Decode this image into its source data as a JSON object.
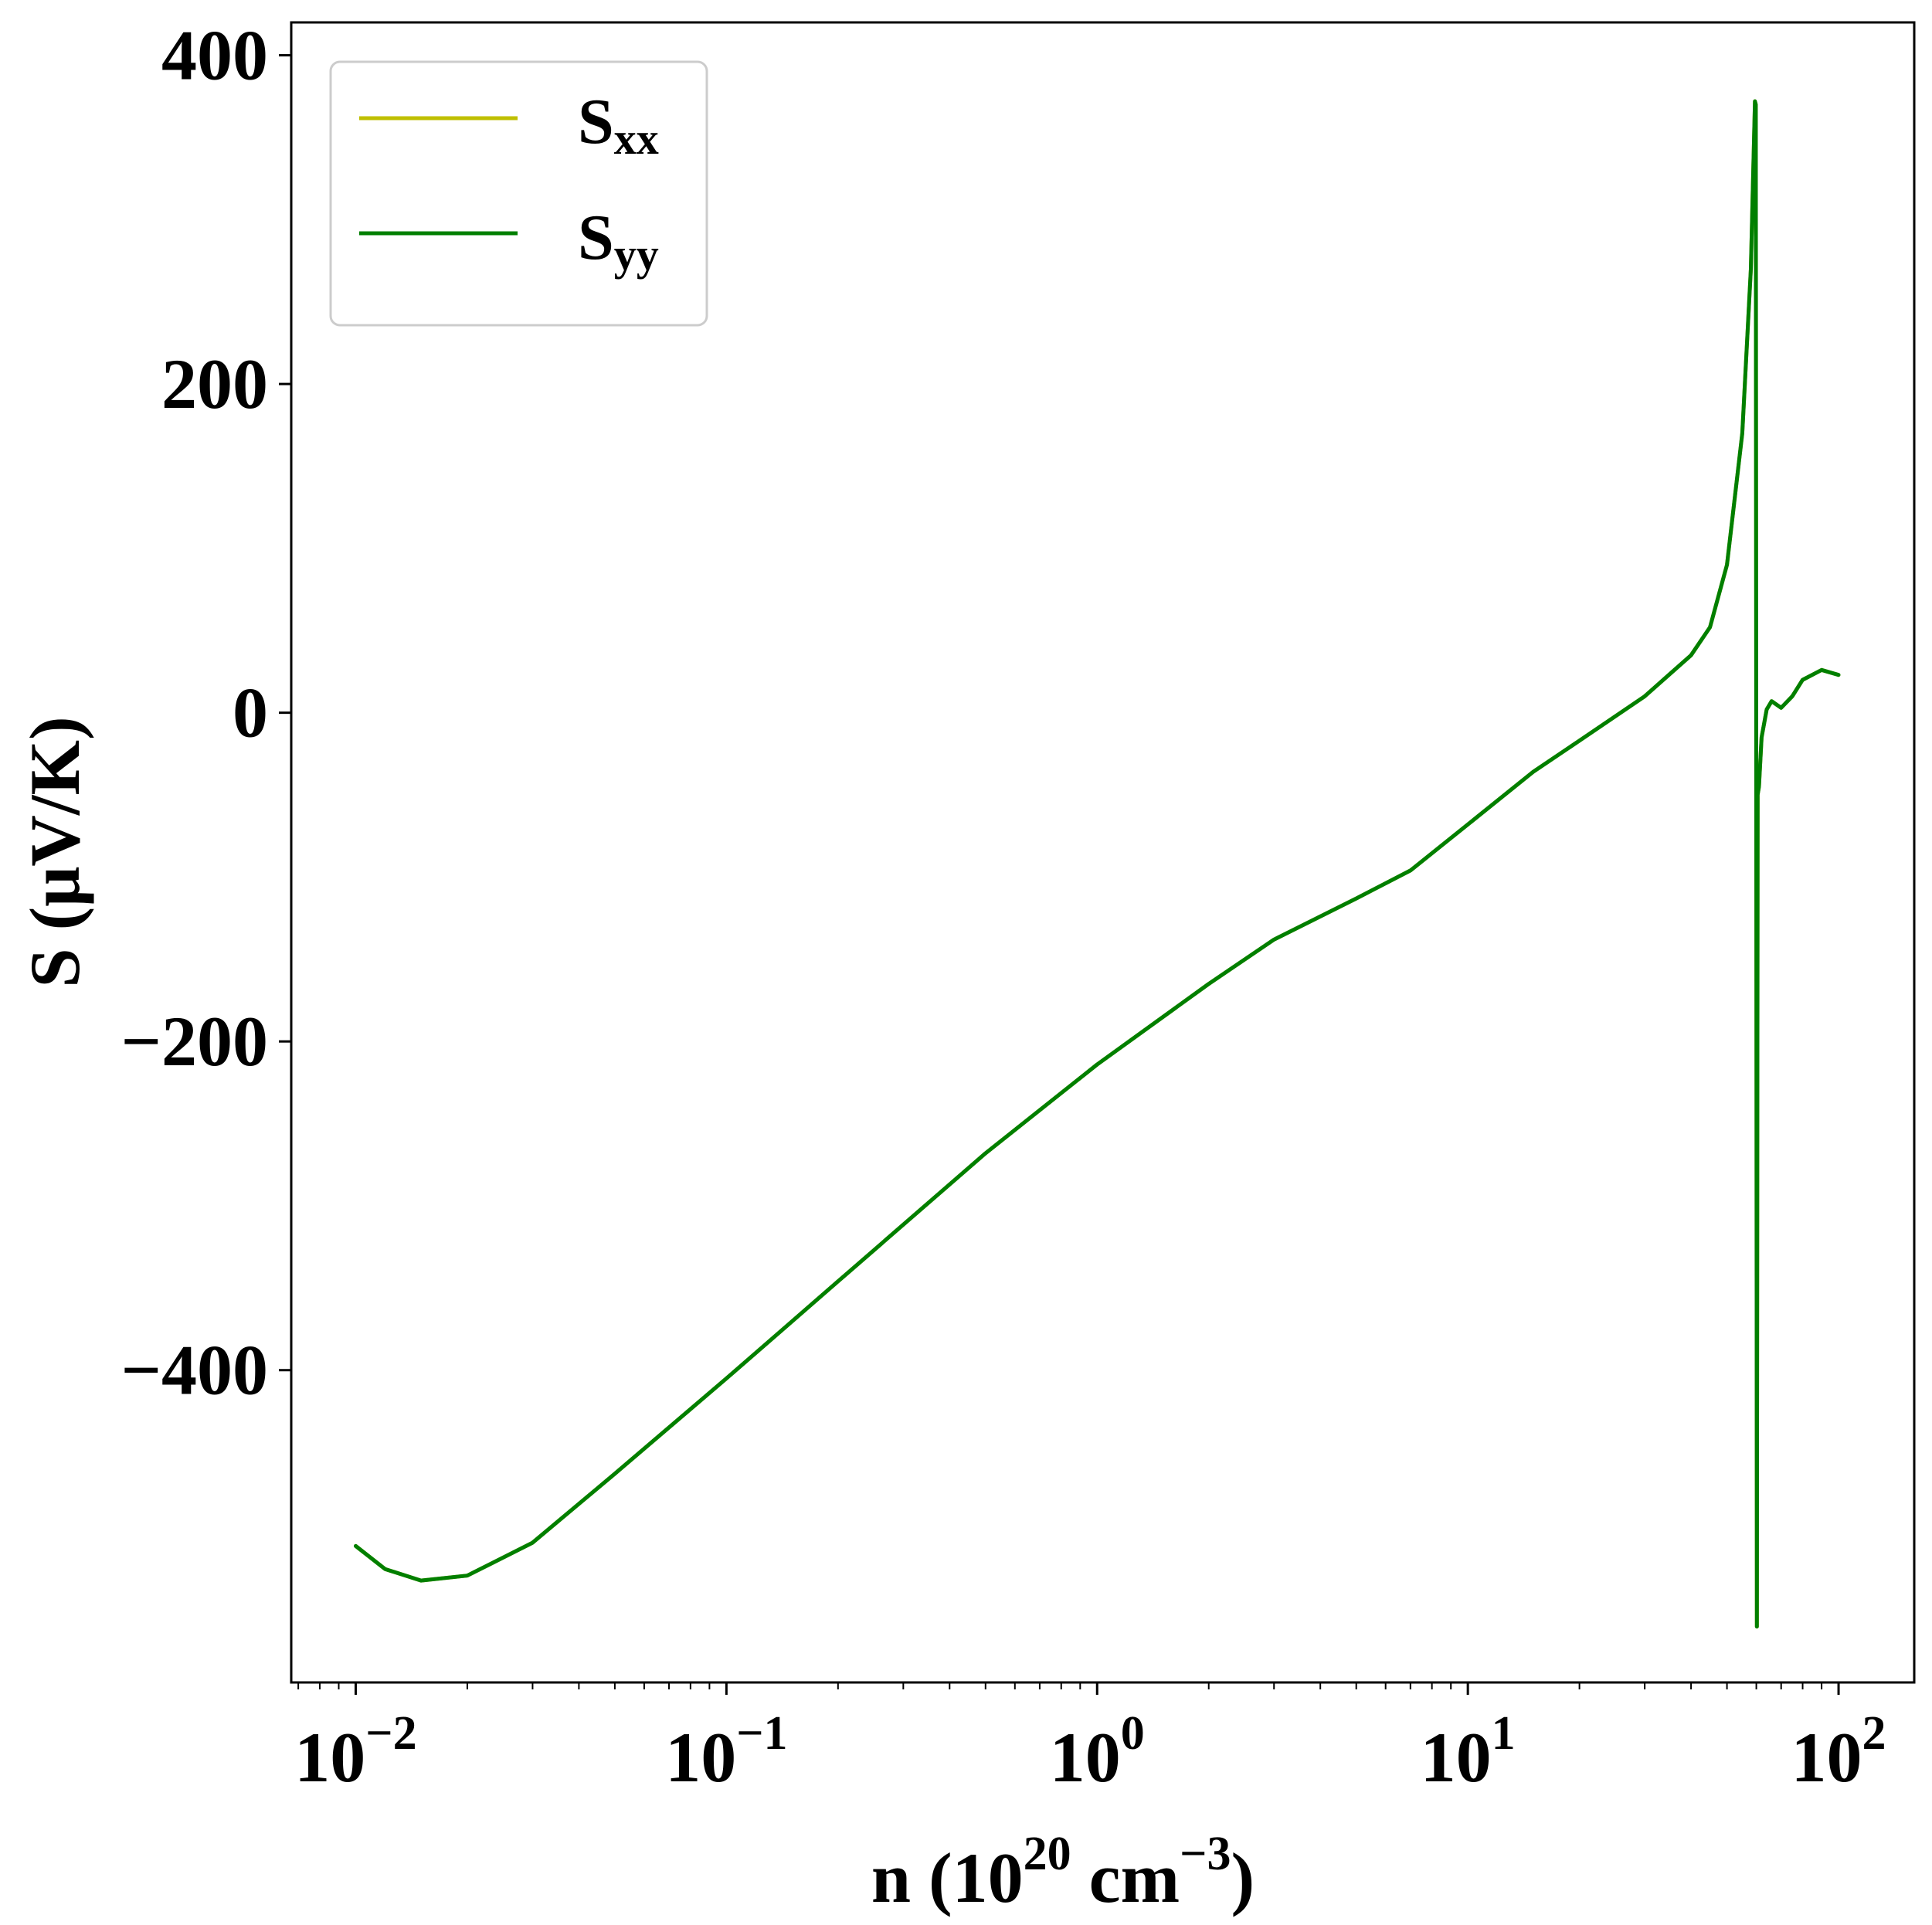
{
  "chart_data": {
    "type": "line",
    "xscale": "log",
    "xlim": [
      0.0067,
      160
    ],
    "ylim": [
      -590,
      420
    ],
    "xlabel": {
      "main": "n (10",
      "exp1": "20",
      "mid": " cm",
      "exp2": "−3",
      "end": ")"
    },
    "ylabel": "S (μV/K)",
    "xticks": [
      {
        "value": 0.01,
        "base": "10",
        "exp": "−2"
      },
      {
        "value": 0.1,
        "base": "10",
        "exp": "−1"
      },
      {
        "value": 1,
        "base": "10",
        "exp": "0"
      },
      {
        "value": 10,
        "base": "10",
        "exp": "1"
      },
      {
        "value": 100,
        "base": "10",
        "exp": "2"
      }
    ],
    "yticks": [
      {
        "value": 400,
        "label": "400"
      },
      {
        "value": 200,
        "label": "200"
      },
      {
        "value": 0,
        "label": "0"
      },
      {
        "value": -200,
        "label": "−200"
      },
      {
        "value": -400,
        "label": "−400"
      }
    ],
    "legend_position": "top-left",
    "grid": false,
    "series": [
      {
        "name": "S",
        "sub": "xx",
        "color": "#bfbf00",
        "x": [
          0.01,
          0.012,
          0.015,
          0.02,
          0.03,
          0.05,
          0.1,
          0.2,
          0.5,
          1,
          2,
          3,
          5,
          7,
          10,
          15,
          20,
          30,
          40,
          45,
          50,
          55,
          58,
          59.5,
          59.8,
          60.2,
          60.5,
          61,
          62,
          64,
          66,
          70,
          75,
          80,
          90,
          100
        ],
        "y": [
          -507,
          -521,
          -528,
          -525,
          -505,
          -463,
          -405,
          -346,
          -268,
          -214,
          -165,
          -138,
          -113,
          -96,
          -68,
          -36,
          -17,
          10,
          35,
          52,
          90,
          170,
          270,
          372,
          370,
          -556,
          -50,
          -45,
          -15,
          2,
          7,
          3,
          10,
          20,
          26,
          23
        ]
      },
      {
        "name": "S",
        "sub": "yy",
        "color": "#007f00",
        "x": [
          0.01,
          0.012,
          0.015,
          0.02,
          0.03,
          0.05,
          0.1,
          0.2,
          0.5,
          1,
          2,
          3,
          5,
          7,
          10,
          15,
          20,
          30,
          40,
          45,
          50,
          55,
          58,
          59.5,
          59.8,
          60.2,
          60.5,
          61,
          62,
          64,
          66,
          70,
          75,
          80,
          90,
          100
        ],
        "y": [
          -507,
          -521,
          -528,
          -525,
          -505,
          -463,
          -405,
          -346,
          -268,
          -214,
          -165,
          -138,
          -113,
          -96,
          -68,
          -36,
          -17,
          10,
          35,
          52,
          90,
          170,
          270,
          372,
          370,
          -556,
          -50,
          -45,
          -15,
          2,
          7,
          3,
          10,
          20,
          26,
          23
        ]
      }
    ]
  }
}
